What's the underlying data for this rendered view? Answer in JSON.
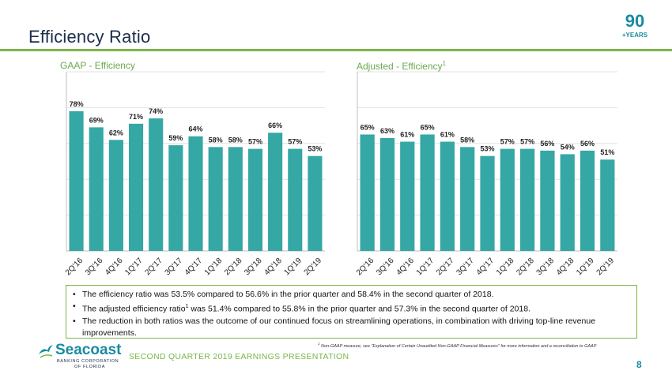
{
  "header": {
    "title": "Efficiency Ratio",
    "badge_number": "90",
    "badge_text": "+YEARS"
  },
  "colors": {
    "bar": "#35a7a4",
    "accent": "#7ab648",
    "brand": "#1a8aa0",
    "grid": "#e3e3e3"
  },
  "chart_data": [
    {
      "type": "bar",
      "title": "GAAP - Efficiency",
      "categories": [
        "2Q'16",
        "3Q'16",
        "4Q'16",
        "1Q'17",
        "2Q'17",
        "3Q'17",
        "4Q'17",
        "1Q'18",
        "2Q'18",
        "3Q'18",
        "4Q'18",
        "1Q'19",
        "2Q'19"
      ],
      "values": [
        78,
        69,
        62,
        71,
        74,
        59,
        64,
        58,
        58,
        57,
        66,
        57,
        53
      ],
      "labels": [
        "78%",
        "69%",
        "62%",
        "71%",
        "74%",
        "59%",
        "64%",
        "58%",
        "58%",
        "57%",
        "66%",
        "57%",
        "53%"
      ],
      "ylim": [
        0,
        100
      ],
      "grid": true,
      "xlabel": "",
      "ylabel": ""
    },
    {
      "type": "bar",
      "title": "Adjusted - Efficiency",
      "title_sup": "1",
      "categories": [
        "2Q'16",
        "3Q'16",
        "4Q'16",
        "1Q'17",
        "2Q'17",
        "3Q'17",
        "4Q'17",
        "1Q'18",
        "2Q'18",
        "3Q'18",
        "4Q'18",
        "1Q'19",
        "2Q'19"
      ],
      "values": [
        65,
        63,
        61,
        65,
        61,
        58,
        53,
        57,
        57,
        56,
        54,
        56,
        51
      ],
      "labels": [
        "65%",
        "63%",
        "61%",
        "65%",
        "61%",
        "58%",
        "53%",
        "57%",
        "57%",
        "56%",
        "54%",
        "56%",
        "51%"
      ],
      "ylim": [
        0,
        100
      ],
      "grid": true,
      "xlabel": "",
      "ylabel": ""
    }
  ],
  "bullets": [
    {
      "text": "The efficiency ratio was 53.5% compared to 56.6% in the prior quarter and 58.4% in the second quarter of 2018."
    },
    {
      "pre": "The adjusted efficiency ratio",
      "sup": "1",
      "post": " was 51.4% compared to 55.8% in the prior quarter and 57.3% in the second quarter of 2018."
    },
    {
      "text": "The reduction in both ratios was the outcome of our continued focus on streamlining operations, in combination with driving top-line revenue improvements."
    }
  ],
  "footnote": {
    "sup": "1",
    "text": " Non-GAAP measure, see \"Explanation of Certain Unaudited Non-GAAP Financial Measures\" for more information and a reconciliation to GAAP"
  },
  "footer": {
    "logo_name": "Seacoast",
    "logo_sub1": "BANKING CORPORATION",
    "logo_sub2": "OF FLORIDA",
    "presentation": "SECOND QUARTER 2019 EARNINGS PRESENTATION",
    "page_number": "8"
  }
}
